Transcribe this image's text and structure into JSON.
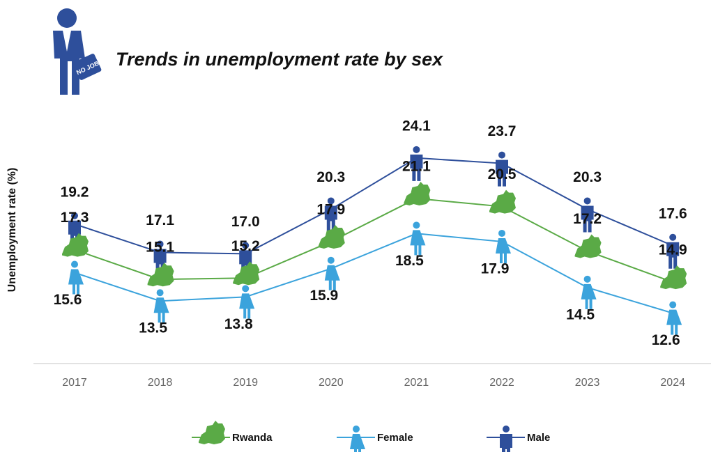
{
  "chart_data": {
    "type": "line",
    "title": "Trends in unemployment rate by sex",
    "icon_text": "NO JOB",
    "y_label": "Unemployment rate (%)",
    "categories": [
      "2017",
      "2018",
      "2019",
      "2020",
      "2021",
      "2022",
      "2023",
      "2024"
    ],
    "ylim": [
      10,
      26
    ],
    "series": [
      {
        "name": "Male",
        "color": "#2e4f9b",
        "marker": "male",
        "label_side": "above",
        "values": [
          19.2,
          17.1,
          17.0,
          20.3,
          24.1,
          23.7,
          20.3,
          17.6
        ],
        "value_labels": [
          "19.2",
          "17.1",
          "17.0",
          "20.3",
          "24.1",
          "23.7",
          "20.3",
          "17.6"
        ]
      },
      {
        "name": "Rwanda",
        "color": "#5aaa46",
        "marker": "map",
        "label_side": "above",
        "values": [
          17.3,
          15.1,
          15.2,
          17.9,
          21.1,
          20.5,
          17.2,
          14.9
        ],
        "value_labels": [
          "17.3",
          "15.1",
          "15.2",
          "17.9",
          "21.1",
          "20.5",
          "17.2",
          "14.9"
        ]
      },
      {
        "name": "Female",
        "color": "#3ba3dc",
        "marker": "female",
        "label_side": "below",
        "values": [
          15.6,
          13.5,
          13.8,
          15.9,
          18.5,
          17.9,
          14.5,
          12.6
        ],
        "value_labels": [
          "15.6",
          "13.5",
          "13.8",
          "15.9",
          "18.5",
          "17.9",
          "14.5",
          "12.6"
        ]
      }
    ],
    "legend_order": [
      1,
      2,
      0
    ]
  }
}
